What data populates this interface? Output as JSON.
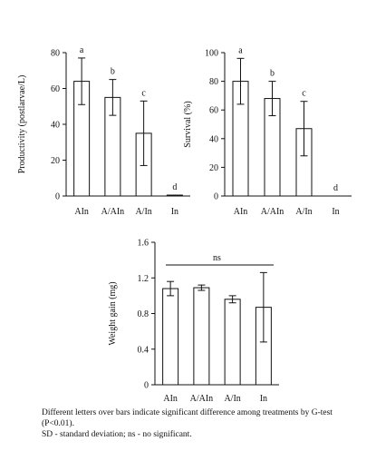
{
  "chart_data": [
    {
      "type": "bar",
      "categories": [
        "AIn",
        "A/AIn",
        "A/In",
        "In"
      ],
      "values": [
        64,
        55,
        35,
        0.5
      ],
      "error": [
        13,
        10,
        18,
        0
      ],
      "letters": [
        "a",
        "b",
        "c",
        "d"
      ],
      "ylabel": "Productivity (postlarvae/L)",
      "ylim": [
        0,
        80
      ],
      "yticks": [
        0,
        20,
        40,
        60,
        80
      ],
      "grid": false
    },
    {
      "type": "bar",
      "categories": [
        "AIn",
        "A/AIn",
        "A/In",
        "In"
      ],
      "values": [
        80,
        68,
        47,
        0
      ],
      "error": [
        16,
        12,
        19,
        0
      ],
      "letters": [
        "a",
        "b",
        "c",
        "d"
      ],
      "ylabel": "Survival (%)",
      "ylim": [
        0,
        100
      ],
      "yticks": [
        0,
        20,
        40,
        60,
        80,
        100
      ],
      "grid": false
    },
    {
      "type": "bar",
      "categories": [
        "AIn",
        "A/AIn",
        "A/In",
        "In"
      ],
      "values": [
        1.08,
        1.09,
        0.96,
        0.87
      ],
      "error": [
        0.08,
        0.03,
        0.04,
        0.39
      ],
      "ylabel": "Weight gain (mg)",
      "ylim": [
        0,
        1.6
      ],
      "yticks": [
        "0",
        "0.4",
        "0.8",
        "1.2",
        "1.6"
      ],
      "annotation": "ns",
      "grid": false
    }
  ],
  "caption": {
    "line1": "Different letters over bars indicate significant difference among treatments by G-test",
    "line2": "(P<0.01).",
    "line3": "SD - standard deviation; ns - no significant."
  }
}
